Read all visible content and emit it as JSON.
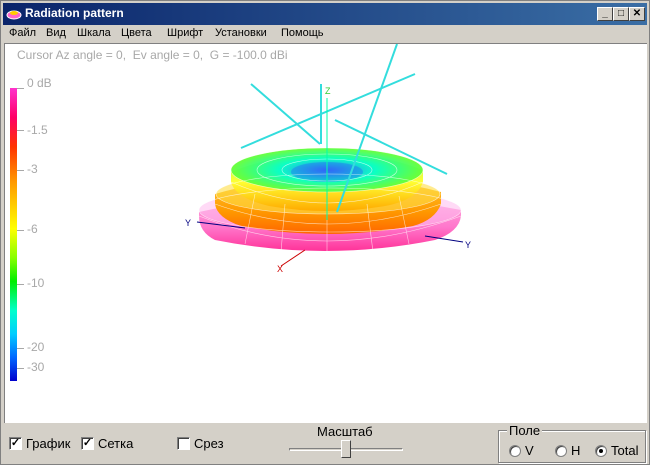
{
  "window": {
    "title": "Radiation pattern"
  },
  "menu": [
    "Файл",
    "Вид",
    "Шкала",
    "Цвета",
    "Шрифт",
    "Установки",
    "Помощь"
  ],
  "cursor_info": "Cursor Az angle = 0,  Ev angle = 0,  G = -100.0 dBi",
  "scale": {
    "labels": [
      "0 dB",
      "-1.5",
      "-3",
      "-6",
      "-10",
      "-20",
      "-30"
    ],
    "colors": [
      "#ff33cc",
      "#ff0066",
      "#ff3300",
      "#ff9900",
      "#ffff00",
      "#00ee00",
      "#00ffcc",
      "#0066ff",
      "#0000cc"
    ]
  },
  "axes": {
    "z": "Z",
    "y": "Y",
    "x": "X"
  },
  "controls": {
    "graph_label": "График",
    "graph_checked": true,
    "grid_label": "Сетка",
    "grid_checked": true,
    "cut_label": "Срез",
    "cut_checked": false,
    "scale_label": "Масштаб",
    "scale_value": 0.5
  },
  "field": {
    "label": "Поле",
    "options": [
      "V",
      "H",
      "Total"
    ],
    "selected": "Total"
  }
}
